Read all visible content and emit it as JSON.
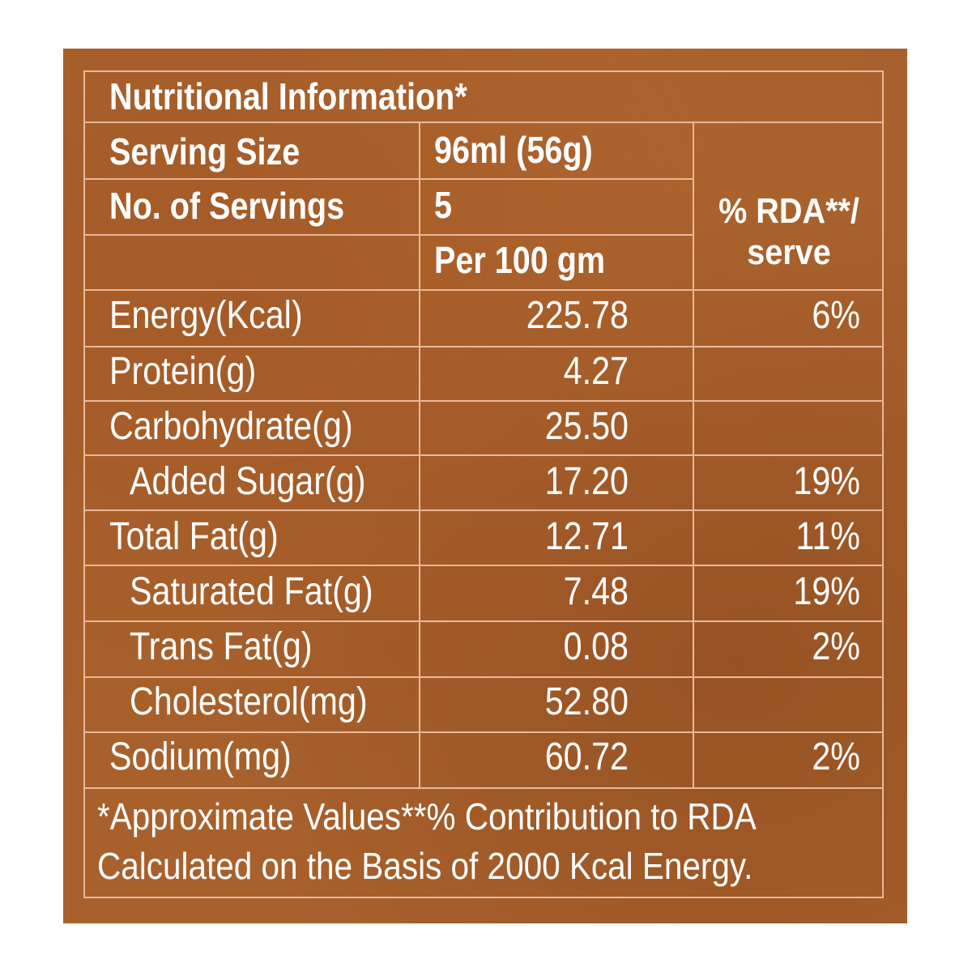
{
  "panel_colors": {
    "background": "#a8612c",
    "lines": "#e8b99a",
    "text": "#ffffff"
  },
  "title": "Nutritional Information*",
  "serving_size": {
    "label": "Serving Size",
    "value": "96ml (56g)"
  },
  "servings": {
    "label": "No. of Servings",
    "value": "5"
  },
  "per_label": "Per 100 gm",
  "rda_header": {
    "line1": "% RDA**/",
    "line2": "serve"
  },
  "rows": [
    {
      "label": "Energy(Kcal)",
      "value": "225.78",
      "rda": "6%"
    },
    {
      "label": "Protein(g)",
      "value": "4.27",
      "rda": ""
    },
    {
      "label": "Carbohydrate(g)",
      "value": "25.50",
      "rda": ""
    },
    {
      "label": "Added Sugar(g)",
      "value": "17.20",
      "rda": "19%"
    },
    {
      "label": "Total Fat(g)",
      "value": "12.71",
      "rda": "11%"
    },
    {
      "label": "Saturated Fat(g)",
      "value": "7.48",
      "rda": "19%"
    },
    {
      "label": "Trans Fat(g)",
      "value": "0.08",
      "rda": "2%"
    },
    {
      "label": "Cholesterol(mg)",
      "value": "52.80",
      "rda": ""
    },
    {
      "label": "Sodium(mg)",
      "value": "60.72",
      "rda": "2%"
    }
  ],
  "footnote": {
    "line1": "*Approximate Values**% Contribution to RDA",
    "line2": "Calculated on the Basis of 2000 Kcal Energy."
  }
}
